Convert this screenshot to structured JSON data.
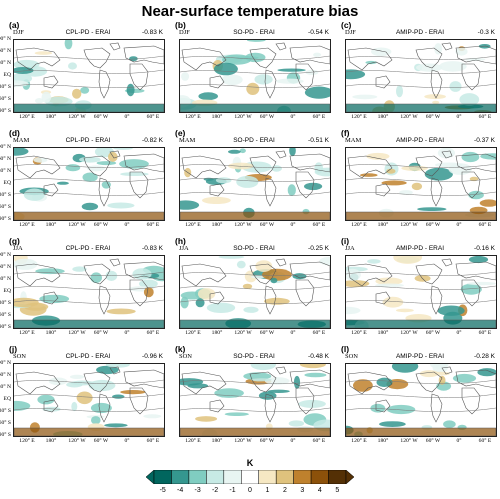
{
  "figure": {
    "title": "Near-surface temperature bias"
  },
  "chart_data": {
    "type": "heatmap",
    "title": "Near-surface temperature bias",
    "colorbar": {
      "label": "K",
      "levels": [
        -5,
        -4,
        -3,
        -2,
        -1,
        0,
        1,
        2,
        3,
        4,
        5
      ],
      "tick_labels": [
        "-5",
        "-4",
        "-3",
        "-2",
        "-1",
        "0",
        "1",
        "2",
        "3",
        "4",
        "5"
      ],
      "colors": [
        "#01665e",
        "#35978f",
        "#80cdc1",
        "#c7eae5",
        "#e8f5f2",
        "#ffffff",
        "#f6e8c3",
        "#dfc27d",
        "#bf812d",
        "#8c510a",
        "#543005"
      ]
    },
    "panels": [
      {
        "label": "(a)",
        "season": "DJF",
        "title": "CPL-PD - ERAI",
        "global_mean_bias": "-0.83 K"
      },
      {
        "label": "(b)",
        "season": "DJF",
        "title": "SO-PD - ERAI",
        "global_mean_bias": "-0.54 K"
      },
      {
        "label": "(c)",
        "season": "DJF",
        "title": "AMIP-PD - ERAI",
        "global_mean_bias": "-0.3 K"
      },
      {
        "label": "(d)",
        "season": "MAM",
        "title": "CPL-PD - ERAI",
        "global_mean_bias": "-0.82 K"
      },
      {
        "label": "(e)",
        "season": "MAM",
        "title": "SO-PD - ERAI",
        "global_mean_bias": "-0.51 K"
      },
      {
        "label": "(f)",
        "season": "MAM",
        "title": "AMIP-PD - ERAI",
        "global_mean_bias": "-0.37 K"
      },
      {
        "label": "(g)",
        "season": "JJA",
        "title": "CPL-PD - ERAI",
        "global_mean_bias": "-0.83 K"
      },
      {
        "label": "(h)",
        "season": "JJA",
        "title": "SO-PD - ERAI",
        "global_mean_bias": "-0.25 K"
      },
      {
        "label": "(i)",
        "season": "JJA",
        "title": "AMIP-PD - ERAI",
        "global_mean_bias": "-0.16 K"
      },
      {
        "label": "(j)",
        "season": "SON",
        "title": "CPL-PD - ERAI",
        "global_mean_bias": "-0.96 K"
      },
      {
        "label": "(k)",
        "season": "SON",
        "title": "SO-PD - ERAI",
        "global_mean_bias": "-0.48 K"
      },
      {
        "label": "(l)",
        "season": "SON",
        "title": "AMIP-PD - ERAI",
        "global_mean_bias": "-0.28 K"
      }
    ],
    "lat_ticks": [
      "90° N",
      "60° N",
      "30° N",
      "EQ",
      "30° S",
      "60° S",
      "90° S"
    ],
    "lon_ticks": [
      "120° E",
      "180°",
      "120° W",
      "60° W",
      "0°",
      "60° E"
    ]
  }
}
